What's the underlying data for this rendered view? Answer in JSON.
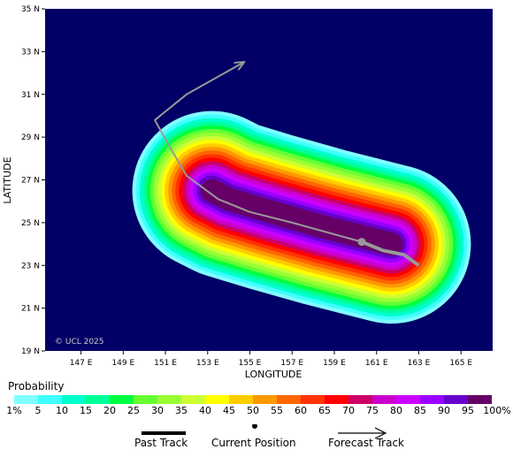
{
  "map": {
    "background_color": "#000066",
    "watermark": "© UCL 2025",
    "x_axis_label": "LONGITUDE",
    "y_axis_label": "LATITUDE",
    "lat_ticks": [
      "35 N",
      "33 N",
      "31 N",
      "29 N",
      "27 N",
      "25 N",
      "23 N",
      "21 N",
      "19 N"
    ],
    "lon_ticks": [
      "147 E",
      "149 E",
      "151 E",
      "153 E",
      "155 E",
      "157 E",
      "159 E",
      "161 E",
      "163 E",
      "165 E"
    ],
    "track_color": "#999999",
    "current_position": {
      "lon": 160.3,
      "lat": 24.1
    },
    "past_track": [
      {
        "lon": 163.0,
        "lat": 23.0
      },
      {
        "lon": 162.3,
        "lat": 23.5
      },
      {
        "lon": 161.3,
        "lat": 23.7
      },
      {
        "lon": 160.3,
        "lat": 24.1
      }
    ],
    "forecast_track": [
      {
        "lon": 160.3,
        "lat": 24.1
      },
      {
        "lon": 157.0,
        "lat": 25.0
      },
      {
        "lon": 155.0,
        "lat": 25.5
      },
      {
        "lon": 153.5,
        "lat": 26.1
      },
      {
        "lon": 152.0,
        "lat": 27.2
      },
      {
        "lon": 151.0,
        "lat": 28.9
      },
      {
        "lon": 150.5,
        "lat": 29.8
      },
      {
        "lon": 152.0,
        "lat": 31.0
      },
      {
        "lon": 154.7,
        "lat": 32.5
      }
    ]
  },
  "legend": {
    "title": "Probability",
    "levels": [
      "1%",
      "5",
      "10",
      "15",
      "20",
      "25",
      "30",
      "35",
      "40",
      "45",
      "50",
      "55",
      "60",
      "65",
      "70",
      "75",
      "80",
      "85",
      "90",
      "95",
      "100%"
    ],
    "colors": [
      "#80ffff",
      "#40ffff",
      "#00ffcc",
      "#00ff99",
      "#00ff40",
      "#66ff33",
      "#99ff33",
      "#ccff33",
      "#ffff00",
      "#ffcc00",
      "#ff9900",
      "#ff6600",
      "#ff3300",
      "#ff0000",
      "#cc0066",
      "#cc00cc",
      "#cc00ff",
      "#9900ff",
      "#6600cc",
      "#660066"
    ]
  },
  "key": {
    "past_track_label": "Past Track",
    "current_position_label": "Current Position",
    "forecast_track_label": "Forecast Track"
  }
}
